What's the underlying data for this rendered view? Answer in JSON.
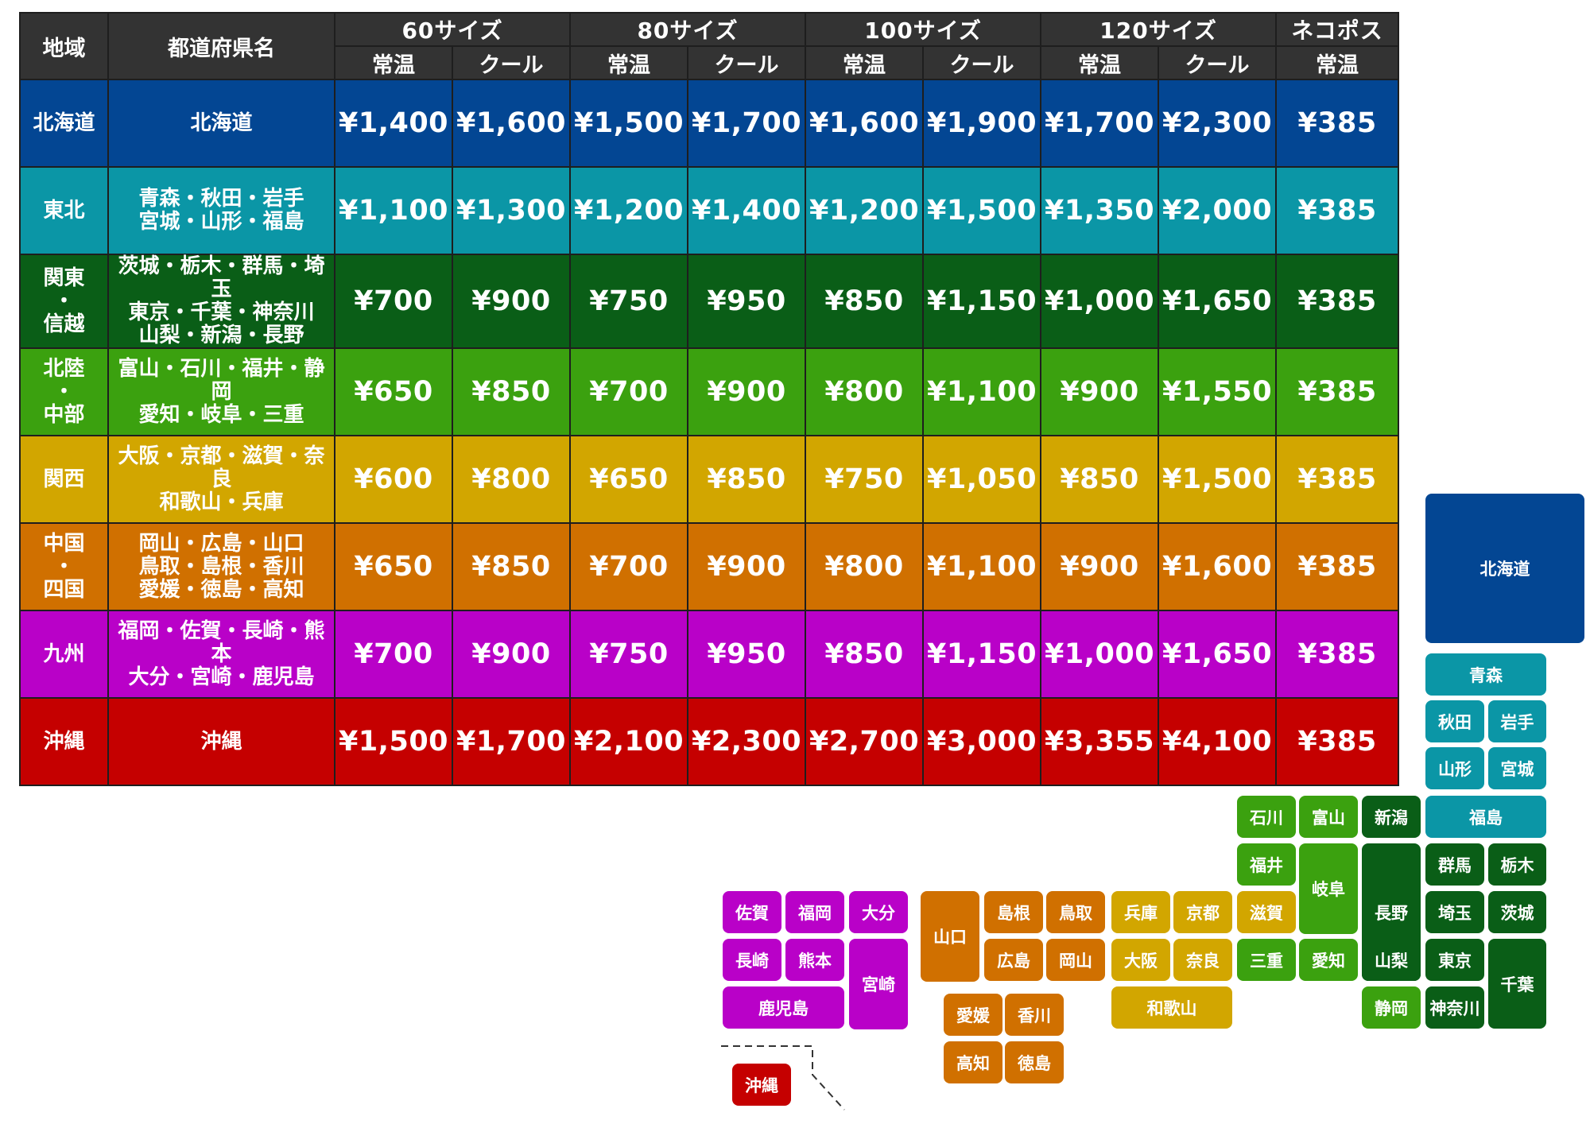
{
  "colors": {
    "header": "#333333",
    "hokkaido": "#034693",
    "tohoku": "#0b96a6",
    "kanto_shinetsu": "#0a5e17",
    "hokuriku_chubu": "#3ba10f",
    "kansai": "#d2a600",
    "chugoku_shikoku": "#d07000",
    "kyushu": "#b901c8",
    "okinawa": "#c50000"
  },
  "table": {
    "region_header": "地域",
    "prefecture_header": "都道府県名",
    "sizes": [
      "60サイズ",
      "80サイズ",
      "100サイズ",
      "120サイズ",
      "ネコポス"
    ],
    "temps": [
      "常温",
      "クール",
      "常温",
      "クール",
      "常温",
      "クール",
      "常温",
      "クール",
      "常温"
    ],
    "rows": [
      {
        "region_lines": [
          "北海道"
        ],
        "pref_lines": [
          "北海道"
        ],
        "prices": [
          "¥1,400",
          "¥1,600",
          "¥1,500",
          "¥1,700",
          "¥1,600",
          "¥1,900",
          "¥1,700",
          "¥2,300",
          "¥385"
        ]
      },
      {
        "region_lines": [
          "東北"
        ],
        "pref_lines": [
          "青森・秋田・岩手",
          "宮城・山形・福島"
        ],
        "prices": [
          "¥1,100",
          "¥1,300",
          "¥1,200",
          "¥1,400",
          "¥1,200",
          "¥1,500",
          "¥1,350",
          "¥2,000",
          "¥385"
        ]
      },
      {
        "region_lines": [
          "関東",
          "・",
          "信越"
        ],
        "pref_lines": [
          "茨城・栃木・群馬・埼玉",
          "東京・千葉・神奈川",
          "山梨・新潟・長野"
        ],
        "prices": [
          "¥700",
          "¥900",
          "¥750",
          "¥950",
          "¥850",
          "¥1,150",
          "¥1,000",
          "¥1,650",
          "¥385"
        ]
      },
      {
        "region_lines": [
          "北陸",
          "・",
          "中部"
        ],
        "pref_lines": [
          "富山・石川・福井・静岡",
          "愛知・岐阜・三重"
        ],
        "prices": [
          "¥650",
          "¥850",
          "¥700",
          "¥900",
          "¥800",
          "¥1,100",
          "¥900",
          "¥1,550",
          "¥385"
        ]
      },
      {
        "region_lines": [
          "関西"
        ],
        "pref_lines": [
          "大阪・京都・滋賀・奈良",
          "和歌山・兵庫"
        ],
        "prices": [
          "¥600",
          "¥800",
          "¥650",
          "¥850",
          "¥750",
          "¥1,050",
          "¥850",
          "¥1,500",
          "¥385"
        ]
      },
      {
        "region_lines": [
          "中国",
          "・",
          "四国"
        ],
        "pref_lines": [
          "岡山・広島・山口",
          "鳥取・島根・香川",
          "愛媛・徳島・高知"
        ],
        "prices": [
          "¥650",
          "¥850",
          "¥700",
          "¥900",
          "¥800",
          "¥1,100",
          "¥900",
          "¥1,600",
          "¥385"
        ]
      },
      {
        "region_lines": [
          "九州"
        ],
        "pref_lines": [
          "福岡・佐賀・長崎・熊本",
          "大分・宮崎・鹿児島"
        ],
        "prices": [
          "¥700",
          "¥900",
          "¥750",
          "¥950",
          "¥850",
          "¥1,150",
          "¥1,000",
          "¥1,650",
          "¥385"
        ]
      },
      {
        "region_lines": [
          "沖縄"
        ],
        "pref_lines": [
          "沖縄"
        ],
        "prices": [
          "¥1,500",
          "¥1,700",
          "¥2,100",
          "¥2,300",
          "¥2,700",
          "¥3,000",
          "¥3,355",
          "¥4,100",
          "¥385"
        ]
      }
    ]
  },
  "map": {
    "tiles": [
      {
        "label": "北海道",
        "region": "hokkaido"
      },
      {
        "label": "青森",
        "region": "tohoku"
      },
      {
        "label": "秋田",
        "region": "tohoku"
      },
      {
        "label": "岩手",
        "region": "tohoku"
      },
      {
        "label": "山形",
        "region": "tohoku"
      },
      {
        "label": "宮城",
        "region": "tohoku"
      },
      {
        "label": "福島",
        "region": "tohoku"
      },
      {
        "label": "石川",
        "region": "hokuriku_chubu"
      },
      {
        "label": "富山",
        "region": "hokuriku_chubu"
      },
      {
        "label": "新潟",
        "region": "kanto_shinetsu"
      },
      {
        "label": "福井",
        "region": "hokuriku_chubu"
      },
      {
        "label": "岐阜",
        "region": "hokuriku_chubu"
      },
      {
        "label": "長野",
        "region": "kanto_shinetsu"
      },
      {
        "label": "群馬",
        "region": "kanto_shinetsu"
      },
      {
        "label": "栃木",
        "region": "kanto_shinetsu"
      },
      {
        "label": "滋賀",
        "region": "kansai"
      },
      {
        "label": "埼玉",
        "region": "kanto_shinetsu"
      },
      {
        "label": "茨城",
        "region": "kanto_shinetsu"
      },
      {
        "label": "三重",
        "region": "hokuriku_chubu"
      },
      {
        "label": "愛知",
        "region": "hokuriku_chubu"
      },
      {
        "label": "山梨",
        "region": "kanto_shinetsu"
      },
      {
        "label": "東京",
        "region": "kanto_shinetsu"
      },
      {
        "label": "千葉",
        "region": "kanto_shinetsu"
      },
      {
        "label": "静岡",
        "region": "hokuriku_chubu"
      },
      {
        "label": "神奈川",
        "region": "kanto_shinetsu"
      },
      {
        "label": "兵庫",
        "region": "kansai"
      },
      {
        "label": "京都",
        "region": "kansai"
      },
      {
        "label": "大阪",
        "region": "kansai"
      },
      {
        "label": "奈良",
        "region": "kansai"
      },
      {
        "label": "和歌山",
        "region": "kansai"
      },
      {
        "label": "山口",
        "region": "chugoku_shikoku"
      },
      {
        "label": "島根",
        "region": "chugoku_shikoku"
      },
      {
        "label": "鳥取",
        "region": "chugoku_shikoku"
      },
      {
        "label": "広島",
        "region": "chugoku_shikoku"
      },
      {
        "label": "岡山",
        "region": "chugoku_shikoku"
      },
      {
        "label": "愛媛",
        "region": "chugoku_shikoku"
      },
      {
        "label": "香川",
        "region": "chugoku_shikoku"
      },
      {
        "label": "高知",
        "region": "chugoku_shikoku"
      },
      {
        "label": "徳島",
        "region": "chugoku_shikoku"
      },
      {
        "label": "佐賀",
        "region": "kyushu"
      },
      {
        "label": "福岡",
        "region": "kyushu"
      },
      {
        "label": "大分",
        "region": "kyushu"
      },
      {
        "label": "長崎",
        "region": "kyushu"
      },
      {
        "label": "熊本",
        "region": "kyushu"
      },
      {
        "label": "宮崎",
        "region": "kyushu"
      },
      {
        "label": "鹿児島",
        "region": "kyushu"
      },
      {
        "label": "沖縄",
        "region": "okinawa"
      }
    ]
  }
}
